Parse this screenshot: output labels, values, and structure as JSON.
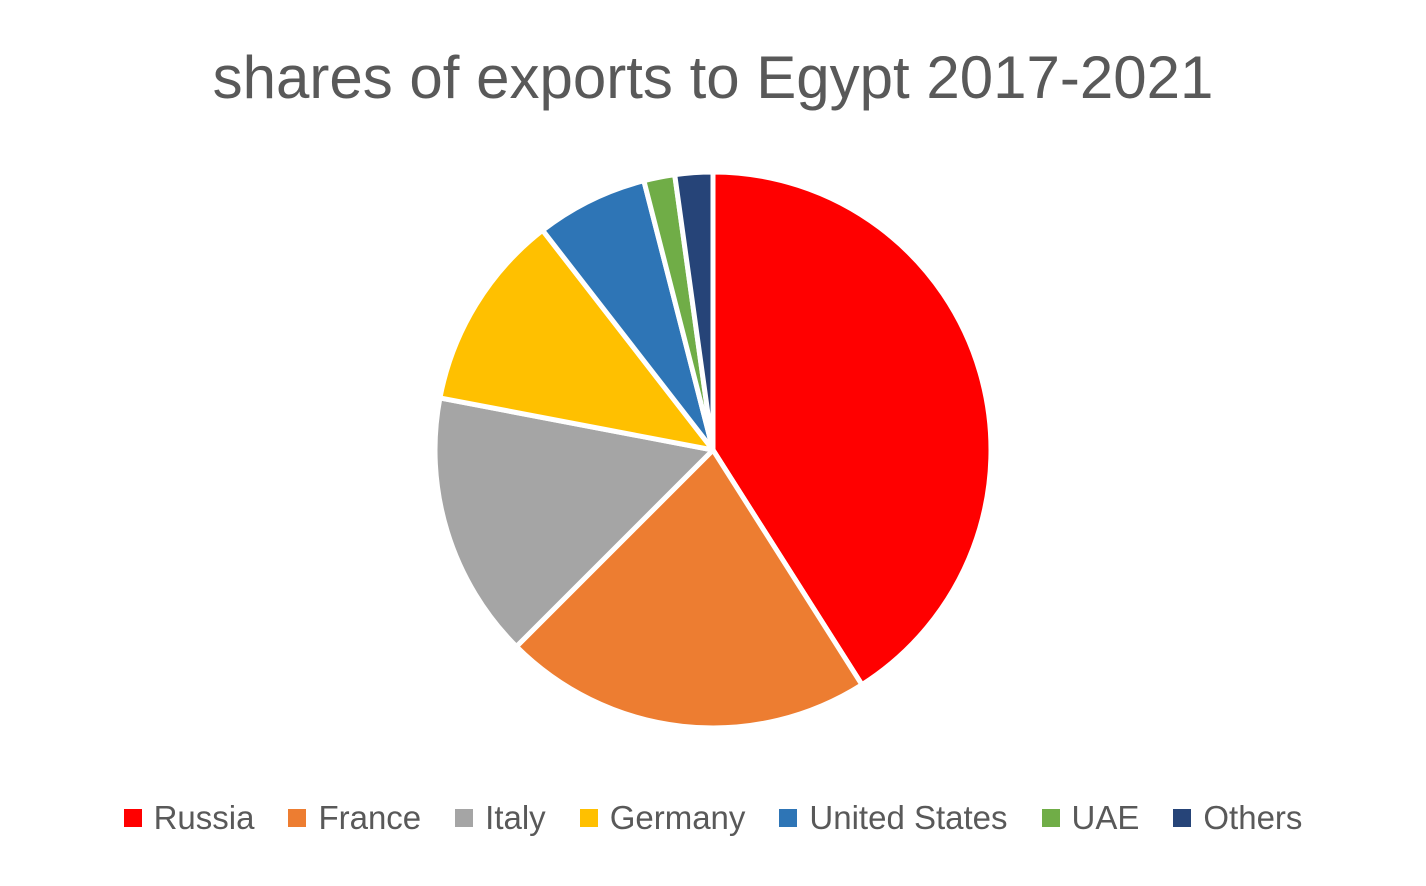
{
  "chart_data": {
    "type": "pie",
    "title": "shares of exports to Egypt 2017-2021",
    "categories": [
      "Russia",
      "France",
      "Italy",
      "Germany",
      "United States",
      "UAE",
      "Others"
    ],
    "values": [
      41.0,
      21.5,
      15.5,
      11.5,
      6.5,
      1.8,
      2.2
    ],
    "colors": [
      "#ff0000",
      "#ed7d31",
      "#a5a5a5",
      "#ffc000",
      "#2e75b6",
      "#70ad47",
      "#264478"
    ],
    "legend_position": "bottom"
  }
}
